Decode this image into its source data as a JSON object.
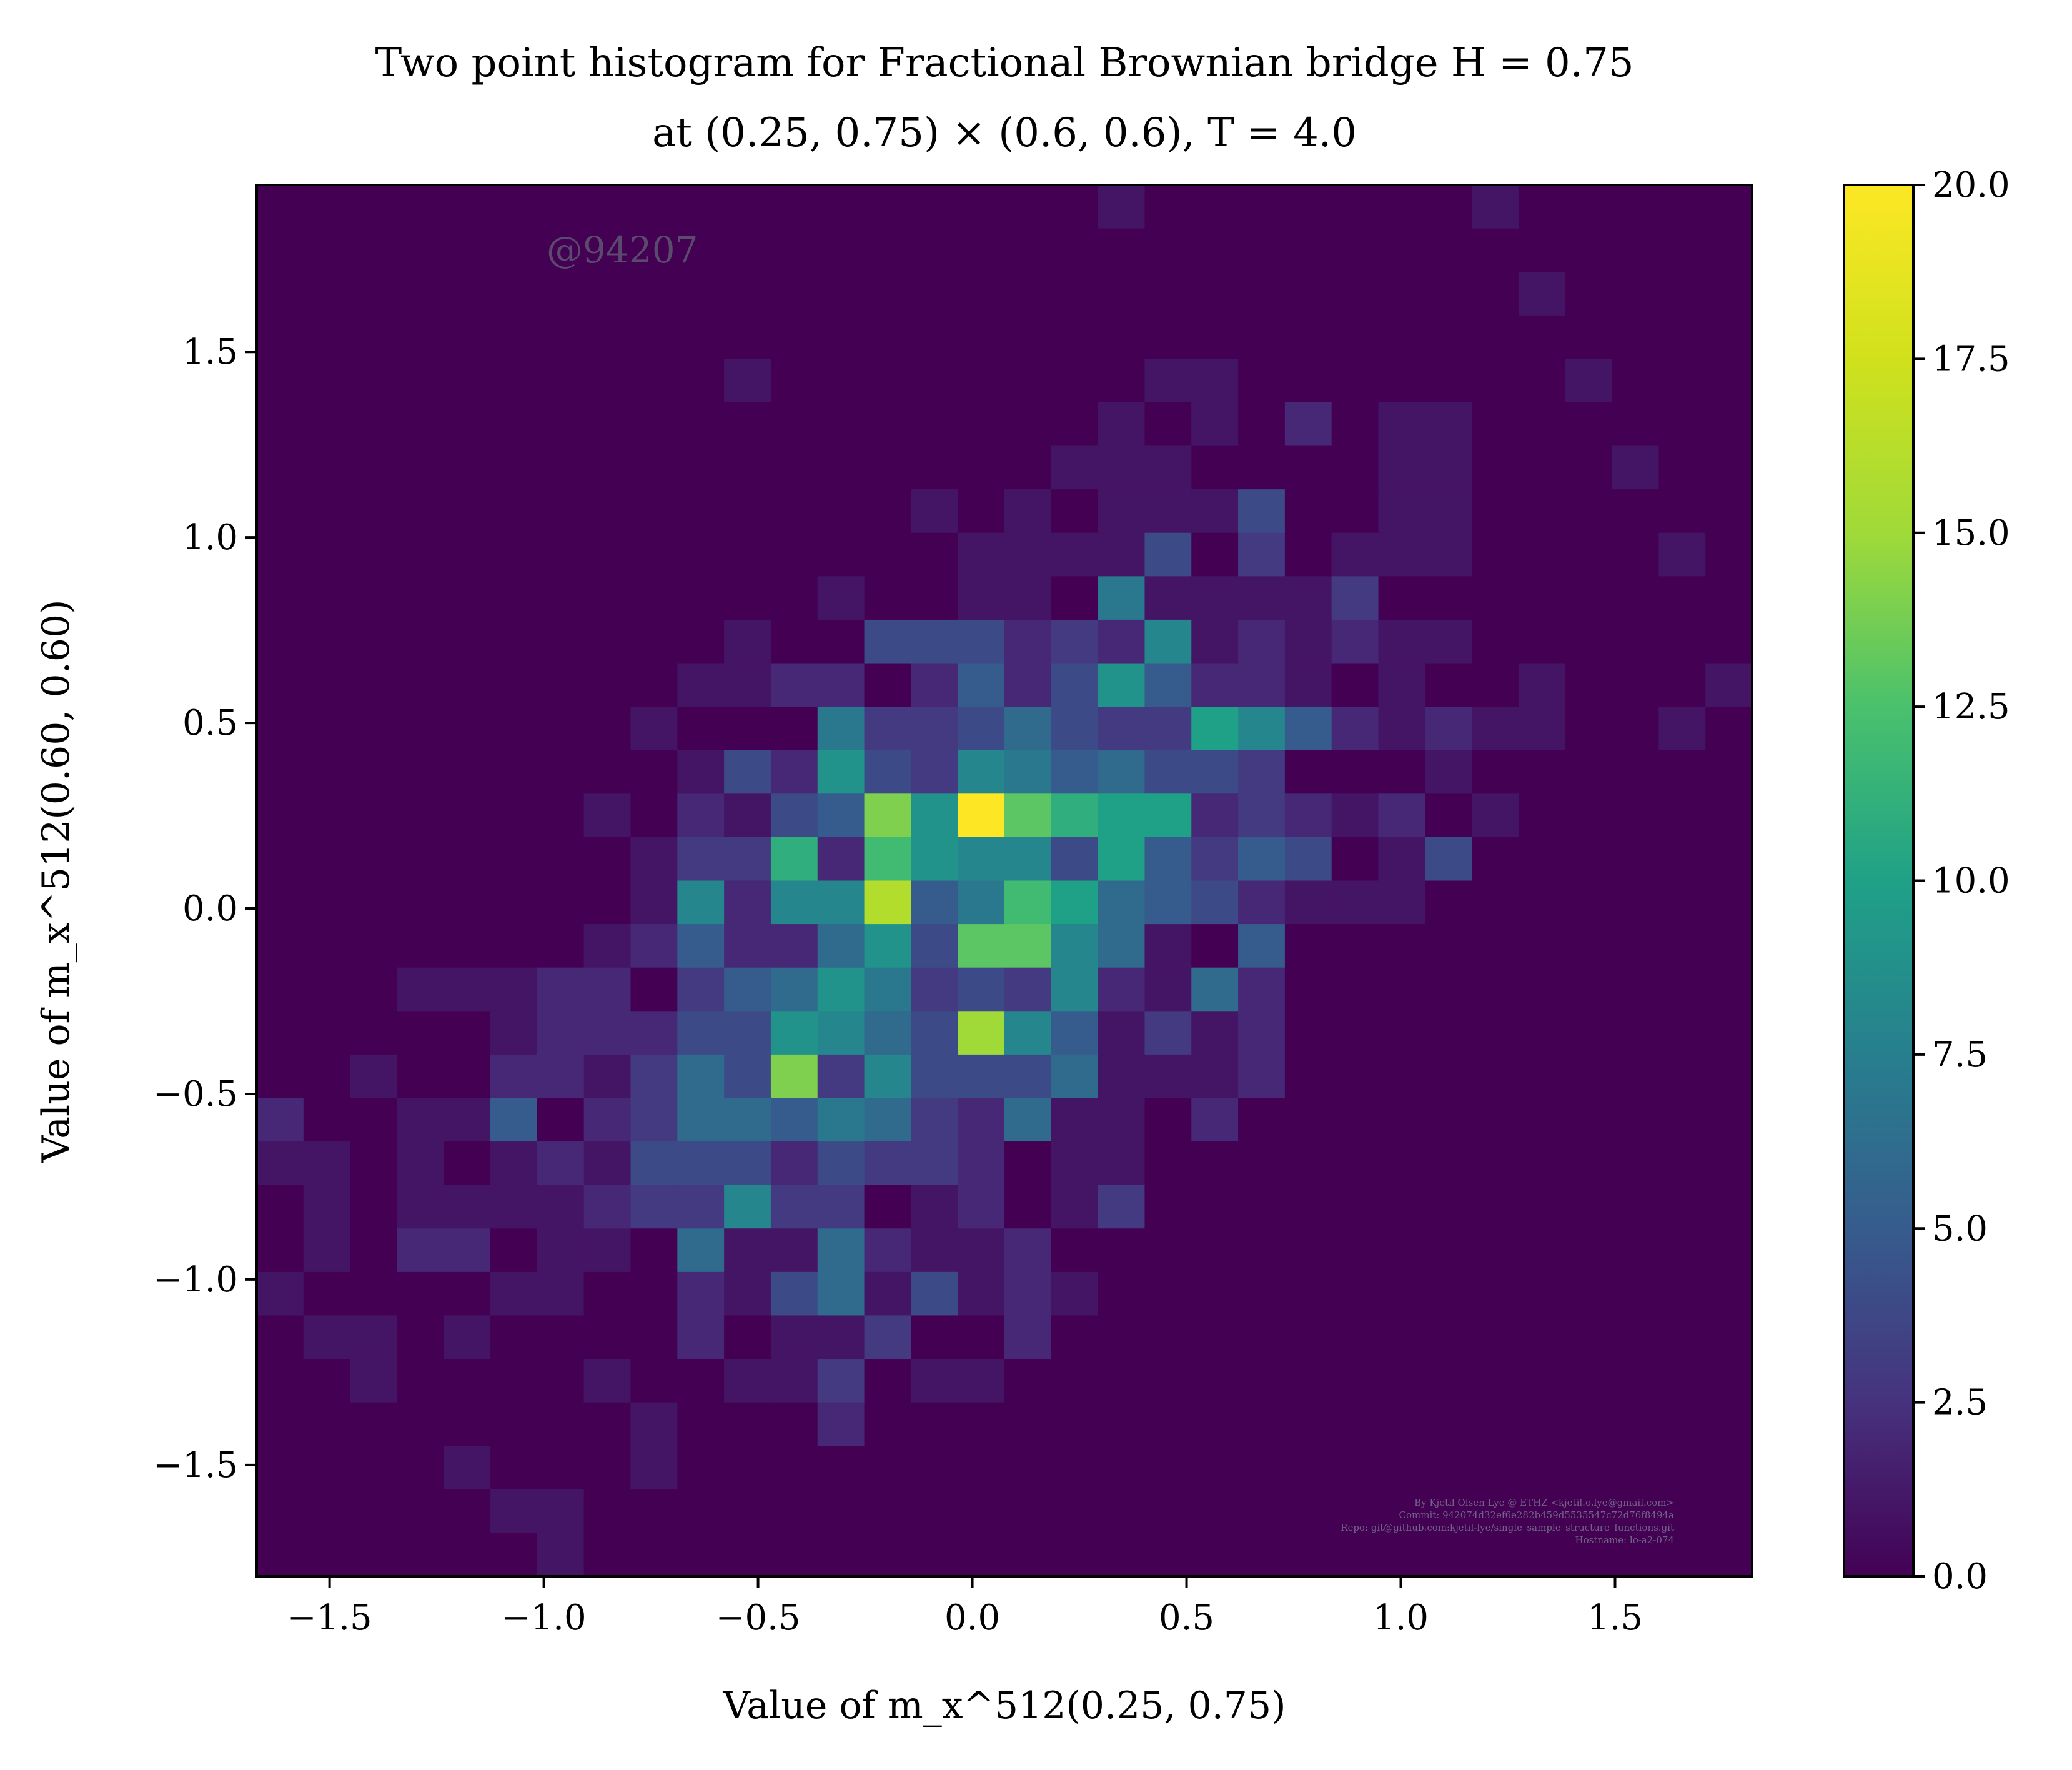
{
  "chart_data": {
    "type": "heatmap",
    "title_line1": "Two point histogram for Fractional Brownian bridge H = 0.75",
    "title_line2": "at (0.25, 0.75) × (0.6, 0.6), T = 4.0",
    "xlabel": "Value of m_x^512(0.25, 0.75)",
    "ylabel": "Value of m_x^512(0.60, 0.60)",
    "xlim": [
      -1.67,
      1.82
    ],
    "ylim": [
      -1.8,
      1.95
    ],
    "xticks": [
      "−1.5",
      "−1.0",
      "−0.5",
      "0.0",
      "0.5",
      "1.0",
      "1.5"
    ],
    "xtick_values": [
      -1.5,
      -1.0,
      -0.5,
      0.0,
      0.5,
      1.0,
      1.5
    ],
    "yticks": [
      "−1.5",
      "−1.0",
      "−0.5",
      "0.0",
      "0.5",
      "1.0",
      "1.5"
    ],
    "ytick_values": [
      -1.5,
      -1.0,
      -0.5,
      0.0,
      0.5,
      1.0,
      1.5
    ],
    "colorbar": {
      "range": [
        0,
        20
      ],
      "ticks": [
        "0.0",
        "2.5",
        "5.0",
        "7.5",
        "10.0",
        "12.5",
        "15.0",
        "17.5",
        "20.0"
      ],
      "tick_values": [
        0,
        2.5,
        5.0,
        7.5,
        10.0,
        12.5,
        15.0,
        17.5,
        20.0
      ],
      "colormap": "viridis"
    },
    "bins": 32,
    "counts_top_to_bottom": [
      [
        0,
        0,
        0,
        0,
        0,
        0,
        0,
        0,
        0,
        0,
        0,
        0,
        0,
        0,
        0,
        0,
        0,
        0,
        1,
        0,
        0,
        0,
        0,
        0,
        0,
        0,
        1,
        0,
        0,
        0,
        0,
        0
      ],
      [
        0,
        0,
        0,
        0,
        0,
        0,
        0,
        0,
        0,
        0,
        0,
        0,
        0,
        0,
        0,
        0,
        0,
        0,
        0,
        0,
        0,
        0,
        0,
        0,
        0,
        0,
        0,
        0,
        0,
        0,
        0,
        0
      ],
      [
        0,
        0,
        0,
        0,
        0,
        0,
        0,
        0,
        0,
        0,
        0,
        0,
        0,
        0,
        0,
        0,
        0,
        0,
        0,
        0,
        0,
        0,
        0,
        0,
        0,
        0,
        0,
        1,
        0,
        0,
        0,
        0
      ],
      [
        0,
        0,
        0,
        0,
        0,
        0,
        0,
        0,
        0,
        0,
        0,
        0,
        0,
        0,
        0,
        0,
        0,
        0,
        0,
        0,
        0,
        0,
        0,
        0,
        0,
        0,
        0,
        0,
        0,
        0,
        0,
        0
      ],
      [
        0,
        0,
        0,
        0,
        0,
        0,
        0,
        0,
        0,
        0,
        1,
        0,
        0,
        0,
        0,
        0,
        0,
        0,
        0,
        1,
        1,
        0,
        0,
        0,
        0,
        0,
        0,
        0,
        1,
        0,
        0,
        0
      ],
      [
        0,
        0,
        0,
        0,
        0,
        0,
        0,
        0,
        0,
        0,
        0,
        0,
        0,
        0,
        0,
        0,
        0,
        0,
        1,
        0,
        1,
        0,
        2,
        0,
        1,
        1,
        0,
        0,
        0,
        0,
        0,
        0
      ],
      [
        0,
        0,
        0,
        0,
        0,
        0,
        0,
        0,
        0,
        0,
        0,
        0,
        0,
        0,
        0,
        0,
        0,
        1,
        1,
        1,
        0,
        0,
        0,
        0,
        1,
        1,
        0,
        0,
        0,
        1,
        0,
        0
      ],
      [
        0,
        0,
        0,
        0,
        0,
        0,
        0,
        0,
        0,
        0,
        0,
        0,
        0,
        0,
        1,
        0,
        1,
        0,
        1,
        1,
        1,
        4,
        0,
        0,
        1,
        1,
        0,
        0,
        0,
        0,
        0,
        0
      ],
      [
        0,
        0,
        0,
        0,
        0,
        0,
        0,
        0,
        0,
        0,
        0,
        0,
        0,
        0,
        0,
        1,
        1,
        1,
        1,
        4,
        0,
        3,
        0,
        1,
        1,
        1,
        0,
        0,
        0,
        0,
        1,
        0
      ],
      [
        0,
        0,
        0,
        0,
        0,
        0,
        0,
        0,
        0,
        0,
        0,
        0,
        1,
        0,
        0,
        1,
        1,
        0,
        7,
        1,
        1,
        1,
        1,
        3,
        0,
        0,
        0,
        0,
        0,
        0,
        0,
        0
      ],
      [
        0,
        0,
        0,
        0,
        0,
        0,
        0,
        0,
        0,
        0,
        1,
        0,
        0,
        4,
        4,
        4,
        2,
        3,
        2,
        8,
        1,
        2,
        1,
        2,
        1,
        1,
        0,
        0,
        0,
        0,
        0,
        0
      ],
      [
        0,
        0,
        0,
        0,
        0,
        0,
        0,
        0,
        0,
        1,
        1,
        2,
        2,
        0,
        2,
        5,
        2,
        4,
        9,
        5,
        2,
        2,
        1,
        0,
        1,
        0,
        0,
        1,
        0,
        0,
        0,
        1
      ],
      [
        0,
        0,
        0,
        0,
        0,
        0,
        0,
        0,
        1,
        0,
        0,
        0,
        7,
        3,
        3,
        4,
        6,
        4,
        3,
        3,
        10,
        8,
        5,
        2,
        1,
        2,
        1,
        1,
        0,
        0,
        1,
        0
      ],
      [
        0,
        0,
        0,
        0,
        0,
        0,
        0,
        0,
        0,
        1,
        4,
        2,
        9,
        4,
        3,
        8,
        7,
        5,
        6,
        4,
        4,
        3,
        0,
        0,
        0,
        1,
        0,
        0,
        0,
        0,
        0,
        0
      ],
      [
        0,
        0,
        0,
        0,
        0,
        0,
        0,
        1,
        0,
        2,
        1,
        4,
        5,
        14,
        9,
        20,
        13,
        11,
        10,
        10,
        2,
        3,
        2,
        1,
        2,
        0,
        1,
        0,
        0,
        0,
        0,
        0
      ],
      [
        0,
        0,
        0,
        0,
        0,
        0,
        0,
        0,
        1,
        3,
        3,
        11,
        2,
        12,
        9,
        8,
        8,
        4,
        10,
        5,
        3,
        5,
        4,
        0,
        1,
        4,
        0,
        0,
        0,
        0,
        0,
        0
      ],
      [
        0,
        0,
        0,
        0,
        0,
        0,
        0,
        0,
        1,
        8,
        2,
        8,
        8,
        16,
        5,
        7,
        12,
        10,
        6,
        5,
        4,
        2,
        1,
        1,
        1,
        0,
        0,
        0,
        0,
        0,
        0,
        0
      ],
      [
        0,
        0,
        0,
        0,
        0,
        0,
        0,
        1,
        2,
        5,
        2,
        2,
        6,
        9,
        4,
        13,
        13,
        8,
        6,
        1,
        0,
        5,
        0,
        0,
        0,
        0,
        0,
        0,
        0,
        0,
        0,
        0
      ],
      [
        0,
        0,
        0,
        1,
        1,
        1,
        2,
        2,
        0,
        3,
        5,
        6,
        9,
        7,
        3,
        4,
        3,
        8,
        2,
        1,
        6,
        2,
        0,
        0,
        0,
        0,
        0,
        0,
        0,
        0,
        0,
        0
      ],
      [
        0,
        0,
        0,
        0,
        0,
        1,
        2,
        2,
        2,
        4,
        4,
        9,
        8,
        6,
        4,
        15,
        8,
        5,
        1,
        3,
        1,
        2,
        0,
        0,
        0,
        0,
        0,
        0,
        0,
        0,
        0,
        0
      ],
      [
        0,
        0,
        1,
        0,
        0,
        2,
        2,
        1,
        3,
        6,
        4,
        14,
        3,
        8,
        4,
        4,
        4,
        6,
        1,
        1,
        1,
        2,
        0,
        0,
        0,
        0,
        0,
        0,
        0,
        0,
        0,
        0
      ],
      [
        2,
        0,
        0,
        1,
        1,
        5,
        0,
        2,
        3,
        6,
        6,
        5,
        7,
        6,
        3,
        2,
        6,
        1,
        1,
        0,
        2,
        0,
        0,
        0,
        0,
        0,
        0,
        0,
        0,
        0,
        0,
        0
      ],
      [
        1,
        1,
        0,
        1,
        0,
        1,
        2,
        1,
        4,
        4,
        4,
        2,
        4,
        3,
        3,
        2,
        0,
        1,
        1,
        0,
        0,
        0,
        0,
        0,
        0,
        0,
        0,
        0,
        0,
        0,
        0,
        0
      ],
      [
        0,
        1,
        0,
        1,
        1,
        1,
        1,
        2,
        3,
        3,
        8,
        3,
        3,
        0,
        1,
        2,
        0,
        1,
        3,
        0,
        0,
        0,
        0,
        0,
        0,
        0,
        0,
        0,
        0,
        0,
        0,
        0
      ],
      [
        0,
        1,
        0,
        2,
        2,
        0,
        1,
        1,
        0,
        6,
        1,
        1,
        6,
        2,
        1,
        1,
        2,
        0,
        0,
        0,
        0,
        0,
        0,
        0,
        0,
        0,
        0,
        0,
        0,
        0,
        0,
        0
      ],
      [
        1,
        0,
        0,
        0,
        0,
        1,
        1,
        0,
        0,
        2,
        1,
        4,
        6,
        1,
        4,
        1,
        2,
        1,
        0,
        0,
        0,
        0,
        0,
        0,
        0,
        0,
        0,
        0,
        0,
        0,
        0,
        0
      ],
      [
        0,
        1,
        1,
        0,
        1,
        0,
        0,
        0,
        0,
        2,
        0,
        1,
        1,
        3,
        0,
        0,
        2,
        0,
        0,
        0,
        0,
        0,
        0,
        0,
        0,
        0,
        0,
        0,
        0,
        0,
        0,
        0
      ],
      [
        0,
        0,
        1,
        0,
        0,
        0,
        0,
        1,
        0,
        0,
        1,
        1,
        3,
        0,
        1,
        1,
        0,
        0,
        0,
        0,
        0,
        0,
        0,
        0,
        0,
        0,
        0,
        0,
        0,
        0,
        0,
        0
      ],
      [
        0,
        0,
        0,
        0,
        0,
        0,
        0,
        0,
        1,
        0,
        0,
        0,
        2,
        0,
        0,
        0,
        0,
        0,
        0,
        0,
        0,
        0,
        0,
        0,
        0,
        0,
        0,
        0,
        0,
        0,
        0,
        0
      ],
      [
        0,
        0,
        0,
        0,
        1,
        0,
        0,
        0,
        1,
        0,
        0,
        0,
        0,
        0,
        0,
        0,
        0,
        0,
        0,
        0,
        0,
        0,
        0,
        0,
        0,
        0,
        0,
        0,
        0,
        0,
        0,
        0
      ],
      [
        0,
        0,
        0,
        0,
        0,
        1,
        1,
        0,
        0,
        0,
        0,
        0,
        0,
        0,
        0,
        0,
        0,
        0,
        0,
        0,
        0,
        0,
        0,
        0,
        0,
        0,
        0,
        0,
        0,
        0,
        0,
        0
      ],
      [
        0,
        0,
        0,
        0,
        0,
        0,
        1,
        0,
        0,
        0,
        0,
        0,
        0,
        0,
        0,
        0,
        0,
        0,
        0,
        0,
        0,
        0,
        0,
        0,
        0,
        0,
        0,
        0,
        0,
        0,
        0,
        0
      ]
    ]
  },
  "watermark": "@94207",
  "credits": [
    "By Kjetil Olsen Lye @ ETHZ <kjetil.o.lye@gmail.com>",
    "Commit: 942074d32ef6e282b459d5535547c72d76f8494a",
    "Repo: git@github.com:kjetil-lye/single_sample_structure_functions.git",
    "Hostname: lo-a2-074"
  ]
}
